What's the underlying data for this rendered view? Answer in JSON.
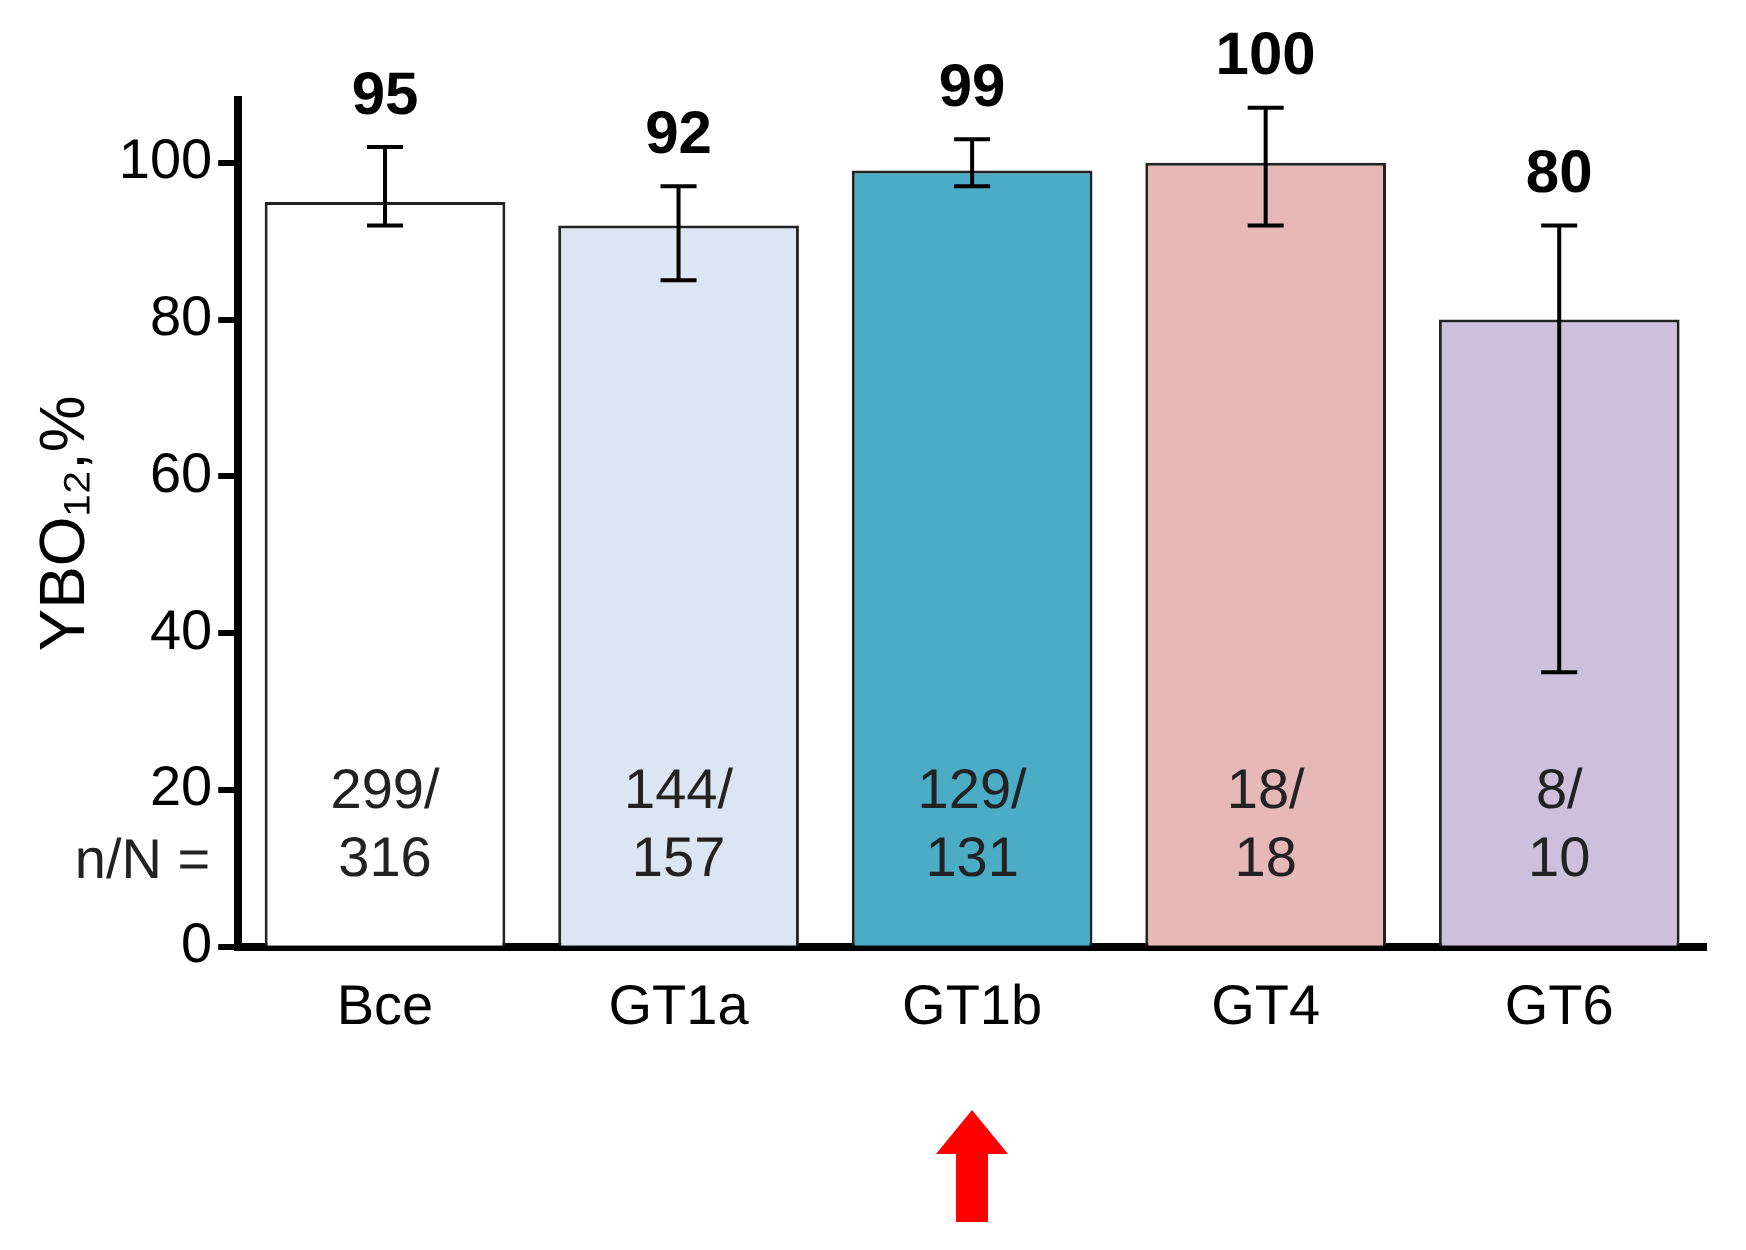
{
  "chart_data": {
    "type": "bar",
    "ylabel": "YBO₁₂,%",
    "categories": [
      "Bce",
      "GT1a",
      "GT1b",
      "GT4",
      "GT6"
    ],
    "values": [
      95,
      92,
      99,
      100,
      80
    ],
    "colors": [
      "#ffffff",
      "#dce6f2",
      "#4bacc6",
      "#e6b9b8",
      "#ccc0da"
    ],
    "errors": [
      [
        92,
        102
      ],
      [
        85,
        97
      ],
      [
        97,
        103
      ],
      [
        92,
        107
      ],
      [
        35,
        92
      ]
    ],
    "data_labels": true,
    "ylim": [
      0,
      108
    ],
    "yticks": [
      0,
      20,
      40,
      60,
      80,
      100
    ],
    "grid": false,
    "legend": false,
    "annotations": [
      "n/N =",
      "299/\n316",
      "144/\n157",
      "129/\n131",
      "18/\n18",
      "8/\n10"
    ]
  }
}
